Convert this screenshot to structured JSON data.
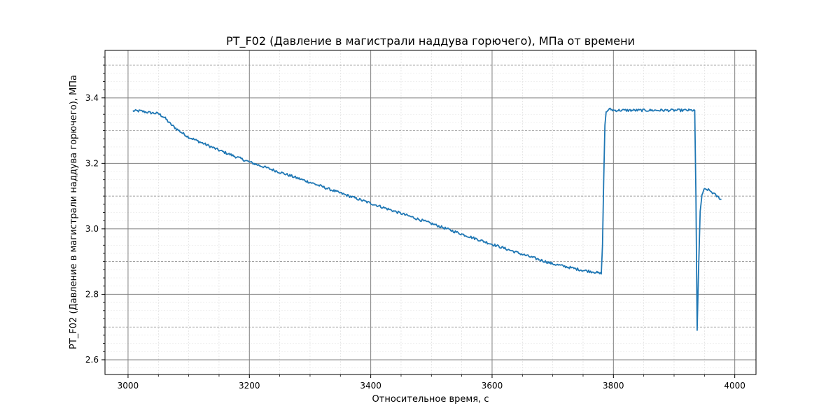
{
  "chart_data": {
    "type": "line",
    "title": "PT_F02 (Давление в магистрали наддува горючего), МПа от времени",
    "xlabel": "Относительное время, с",
    "ylabel": "PT_F02 (Давление в магистрали наддува горючего), МПа",
    "xlim": [
      2962,
      4035
    ],
    "ylim": [
      2.555,
      3.545
    ],
    "xticks": [
      3000,
      3200,
      3400,
      3600,
      3800,
      4000
    ],
    "xtick_labels": [
      "3000",
      "3200",
      "3400",
      "3600",
      "3800",
      "4000"
    ],
    "yticks": [
      2.6,
      2.8,
      3.0,
      3.2,
      3.4
    ],
    "ytick_labels": [
      "2.6",
      "2.8",
      "3.0",
      "3.2",
      "3.4"
    ],
    "y_minor_gridlines": [
      2.7,
      2.9,
      3.1,
      3.3,
      3.5
    ],
    "grid": "major and minor",
    "line_color": "#1f77b4",
    "series": [
      {
        "x": [
          3008,
          3020,
          3035,
          3050,
          3060,
          3070,
          3080,
          3090,
          3100,
          3150,
          3200,
          3250,
          3300,
          3350,
          3400,
          3450,
          3500,
          3550,
          3600,
          3650,
          3700,
          3750,
          3770,
          3780,
          3782,
          3784,
          3786,
          3788,
          3792,
          3796,
          3800,
          3820,
          3850,
          3880,
          3900,
          3920,
          3930,
          3934,
          3936,
          3938,
          3940,
          3943,
          3946,
          3950,
          3955,
          3960,
          3965,
          3970,
          3978
        ],
        "y": [
          3.36,
          3.36,
          3.355,
          3.352,
          3.34,
          3.32,
          3.305,
          3.292,
          3.28,
          3.24,
          3.204,
          3.173,
          3.142,
          3.109,
          3.078,
          3.047,
          3.016,
          2.984,
          2.953,
          2.922,
          2.893,
          2.873,
          2.868,
          2.862,
          2.95,
          3.15,
          3.32,
          3.355,
          3.365,
          3.365,
          3.362,
          3.362,
          3.362,
          3.362,
          3.362,
          3.362,
          3.362,
          3.362,
          3.1,
          2.69,
          2.85,
          3.05,
          3.105,
          3.12,
          3.12,
          3.115,
          3.108,
          3.1,
          3.09
        ]
      }
    ]
  }
}
